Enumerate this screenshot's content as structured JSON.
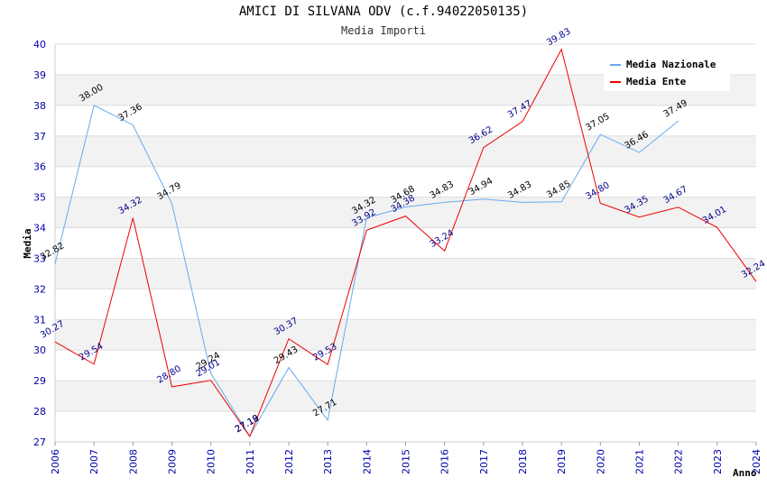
{
  "chart_data": {
    "type": "line",
    "title": "AMICI DI SILVANA ODV (c.f.94022050135)",
    "subtitle": "Media Importi",
    "xlabel": "Anno",
    "ylabel": "Media",
    "ylim": [
      27,
      40
    ],
    "yticks": [
      "27",
      "28",
      "29",
      "30",
      "31",
      "32",
      "33",
      "34",
      "35",
      "36",
      "37",
      "38",
      "39",
      "40"
    ],
    "categories": [
      "2006",
      "2007",
      "2008",
      "2009",
      "2010",
      "2011",
      "2012",
      "2013",
      "2014",
      "2015",
      "2016",
      "2017",
      "2018",
      "2019",
      "2020",
      "2021",
      "2022",
      "2023",
      "2024"
    ],
    "legend_position": "top-right",
    "grid": true,
    "series": [
      {
        "name": "Media Nazionale",
        "color": "#66aaee",
        "label_color": "#000000",
        "values": [
          32.82,
          38.0,
          37.36,
          34.79,
          29.24,
          27.19,
          29.43,
          27.71,
          34.32,
          34.68,
          34.83,
          34.94,
          34.83,
          34.85,
          37.05,
          36.46,
          37.49,
          null,
          null
        ],
        "labels": [
          "32.82",
          "38.00",
          "37.36",
          "34.79",
          "29.24",
          "27.19",
          "29.43",
          "27.71",
          "34.32",
          "34.68",
          "34.83",
          "34.94",
          "34.83",
          "34.85",
          "37.05",
          "36.46",
          "37.49",
          "",
          ""
        ]
      },
      {
        "name": "Media Ente",
        "color": "#ee0000",
        "label_color": "#00008b",
        "values": [
          30.27,
          29.54,
          34.32,
          28.8,
          29.01,
          27.18,
          30.37,
          29.53,
          33.92,
          34.38,
          33.24,
          36.62,
          37.47,
          39.83,
          34.8,
          34.35,
          34.67,
          34.01,
          32.24
        ],
        "labels": [
          "30.27",
          "29.54",
          "34.32",
          "28.80",
          "29.01",
          "27.18",
          "30.37",
          "29.53",
          "33.92",
          "34.38",
          "33.24",
          "36.62",
          "37.47",
          "39.83",
          "34.80",
          "34.35",
          "34.67",
          "34.01",
          "32.24"
        ]
      }
    ]
  }
}
